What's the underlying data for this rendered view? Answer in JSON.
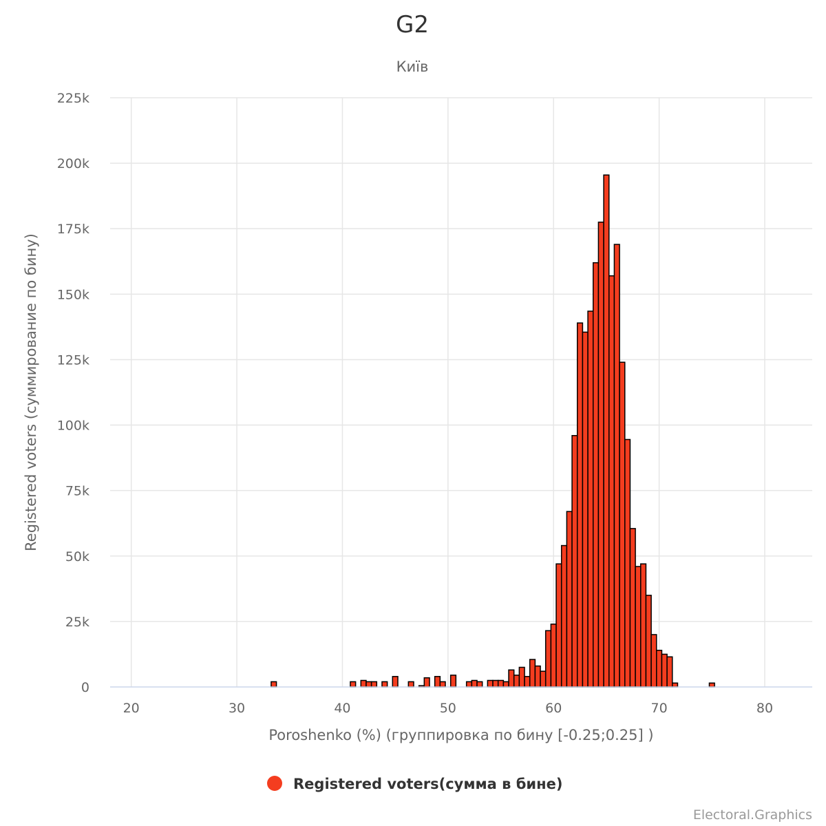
{
  "chart_data": {
    "type": "bar",
    "title": "G2",
    "subtitle": "Київ",
    "xlabel": "Poroshenko (%) (группировка по бину [-0.25;0.25] )",
    "ylabel": "Registered voters (суммирование по бину)",
    "xlim": [
      18,
      84.5
    ],
    "ylim": [
      0,
      225000
    ],
    "x_ticks": [
      20,
      30,
      40,
      50,
      60,
      70,
      80
    ],
    "y_ticks": [
      0,
      25000,
      50000,
      75000,
      100000,
      125000,
      150000,
      175000,
      200000,
      225000
    ],
    "y_tick_labels": [
      "0",
      "25k",
      "50k",
      "75k",
      "100k",
      "125k",
      "150k",
      "175k",
      "200k",
      "225k"
    ],
    "bin_width": 0.5,
    "grid": true,
    "legend_position": "bottom-center",
    "series": [
      {
        "name": "Registered voters(сумма в бине)",
        "color": "#f43d1f",
        "x": [
          33.5,
          41.0,
          42.0,
          42.5,
          43.0,
          44.0,
          45.0,
          46.5,
          47.5,
          48.0,
          49.0,
          49.5,
          50.5,
          52.0,
          52.5,
          53.0,
          54.0,
          54.5,
          55.0,
          55.5,
          56.0,
          56.5,
          57.0,
          57.5,
          58.0,
          58.5,
          59.0,
          59.5,
          60.0,
          60.5,
          61.0,
          61.5,
          62.0,
          62.5,
          63.0,
          63.5,
          64.0,
          64.5,
          65.0,
          65.5,
          66.0,
          66.5,
          67.0,
          67.5,
          68.0,
          68.5,
          69.0,
          69.5,
          70.0,
          70.5,
          71.0,
          71.5,
          75.0
        ],
        "values": [
          2000,
          2000,
          2500,
          2000,
          2000,
          2000,
          4000,
          2000,
          500,
          3500,
          4000,
          2000,
          4500,
          2000,
          2500,
          2000,
          2500,
          2500,
          2500,
          2000,
          6500,
          4500,
          7500,
          4000,
          10500,
          8000,
          6000,
          21500,
          24000,
          47000,
          54000,
          67000,
          96000,
          139000,
          135500,
          143500,
          162000,
          177500,
          195500,
          157000,
          169000,
          124000,
          94500,
          60500,
          46000,
          47000,
          35000,
          20000,
          14000,
          12500,
          11500,
          1500,
          1500
        ]
      }
    ]
  },
  "credit": "Electoral.Graphics"
}
